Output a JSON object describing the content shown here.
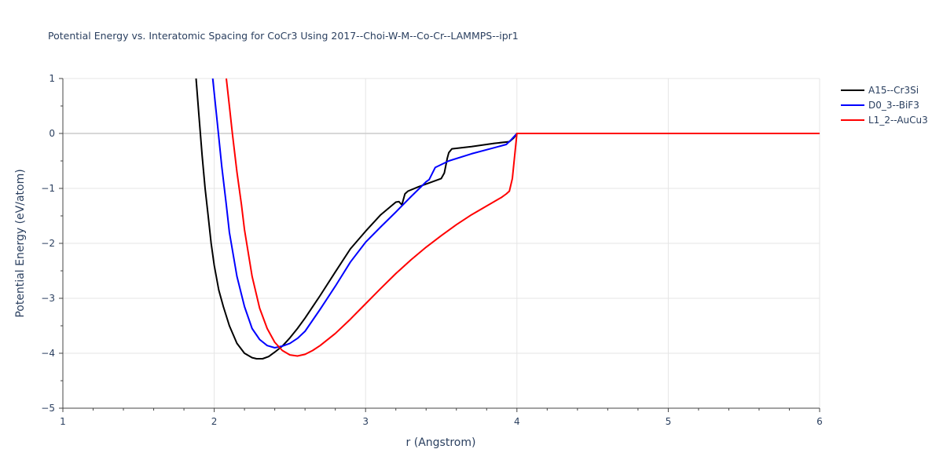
{
  "chart_data": {
    "type": "line",
    "title": "Potential Energy vs. Interatomic Spacing for CoCr3 Using 2017--Choi-W-M--Co-Cr--LAMMPS--ipr1",
    "xlabel": "r (Angstrom)",
    "ylabel": "Potential Energy (eV/atom)",
    "xlim": [
      1,
      6
    ],
    "ylim": [
      -5,
      1
    ],
    "xticks": [
      1,
      2,
      3,
      4,
      5,
      6
    ],
    "yticks": [
      1,
      0,
      -1,
      -2,
      -3,
      -4,
      -5
    ],
    "xtick_labels": [
      "1",
      "2",
      "3",
      "4",
      "5",
      "6"
    ],
    "ytick_labels": [
      "1",
      "0",
      "−1",
      "−2",
      "−3",
      "−4",
      "−5"
    ],
    "grid": true,
    "legend_position": "top-right",
    "series": [
      {
        "name": "A15--Cr3Si",
        "color": "#000000",
        "x": [
          1.88,
          1.9,
          1.92,
          1.94,
          1.96,
          1.98,
          2.0,
          2.03,
          2.06,
          2.1,
          2.15,
          2.2,
          2.25,
          2.28,
          2.32,
          2.36,
          2.4,
          2.45,
          2.5,
          2.55,
          2.6,
          2.7,
          2.8,
          2.9,
          3.0,
          3.1,
          3.2,
          3.22,
          3.24,
          3.26,
          3.28,
          3.35,
          3.45,
          3.5,
          3.52,
          3.54,
          3.55,
          3.57,
          3.7,
          3.85,
          3.95,
          3.98,
          4.0,
          4.5,
          5.0,
          5.5,
          6.0
        ],
        "y": [
          1.0,
          0.3,
          -0.4,
          -1.0,
          -1.5,
          -2.0,
          -2.4,
          -2.85,
          -3.15,
          -3.5,
          -3.82,
          -4.0,
          -4.08,
          -4.1,
          -4.1,
          -4.06,
          -3.98,
          -3.87,
          -3.72,
          -3.55,
          -3.36,
          -2.95,
          -2.52,
          -2.1,
          -1.78,
          -1.48,
          -1.25,
          -1.24,
          -1.3,
          -1.1,
          -1.05,
          -0.97,
          -0.87,
          -0.82,
          -0.72,
          -0.45,
          -0.35,
          -0.28,
          -0.24,
          -0.18,
          -0.15,
          -0.08,
          0.0,
          0.0,
          0.0,
          0.0,
          0.0
        ]
      },
      {
        "name": "D0_3--BiF3",
        "color": "#0000ff",
        "x": [
          1.99,
          2.02,
          2.05,
          2.08,
          2.1,
          2.15,
          2.2,
          2.25,
          2.3,
          2.35,
          2.4,
          2.45,
          2.5,
          2.55,
          2.6,
          2.7,
          2.8,
          2.9,
          3.0,
          3.1,
          3.2,
          3.3,
          3.4,
          3.42,
          3.46,
          3.55,
          3.7,
          3.85,
          3.93,
          3.96,
          4.0,
          4.5,
          5.0,
          5.5,
          6.0
        ],
        "y": [
          1.0,
          0.2,
          -0.6,
          -1.3,
          -1.8,
          -2.6,
          -3.15,
          -3.55,
          -3.75,
          -3.86,
          -3.9,
          -3.87,
          -3.82,
          -3.73,
          -3.6,
          -3.2,
          -2.78,
          -2.34,
          -1.98,
          -1.7,
          -1.43,
          -1.15,
          -0.88,
          -0.84,
          -0.62,
          -0.5,
          -0.37,
          -0.26,
          -0.2,
          -0.12,
          0.0,
          0.0,
          0.0,
          0.0,
          0.0
        ]
      },
      {
        "name": "L1_2--AuCu3",
        "color": "#ff0000",
        "x": [
          2.08,
          2.1,
          2.12,
          2.15,
          2.18,
          2.2,
          2.25,
          2.3,
          2.35,
          2.4,
          2.45,
          2.5,
          2.55,
          2.6,
          2.65,
          2.7,
          2.8,
          2.9,
          3.0,
          3.1,
          3.2,
          3.3,
          3.4,
          3.5,
          3.6,
          3.7,
          3.8,
          3.9,
          3.93,
          3.95,
          3.97,
          4.0,
          4.5,
          5.0,
          5.5,
          6.0
        ],
        "y": [
          1.0,
          0.5,
          0.0,
          -0.7,
          -1.3,
          -1.75,
          -2.6,
          -3.18,
          -3.55,
          -3.8,
          -3.95,
          -4.03,
          -4.05,
          -4.02,
          -3.95,
          -3.86,
          -3.64,
          -3.38,
          -3.1,
          -2.82,
          -2.55,
          -2.3,
          -2.07,
          -1.86,
          -1.66,
          -1.48,
          -1.32,
          -1.16,
          -1.1,
          -1.05,
          -0.82,
          0.0,
          0.0,
          0.0,
          0.0,
          0.0
        ]
      }
    ]
  }
}
